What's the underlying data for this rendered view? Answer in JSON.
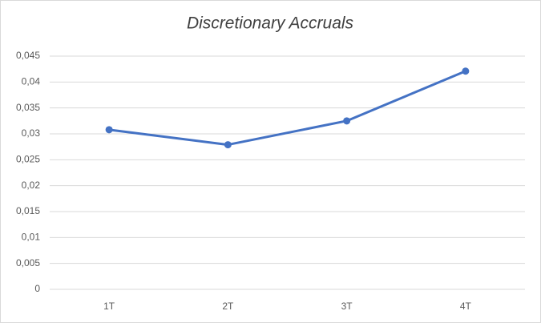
{
  "chart_data": {
    "type": "line",
    "title": "Discretionary Accruals",
    "categories": [
      "1T",
      "2T",
      "3T",
      "4T"
    ],
    "series": [
      {
        "name": "Discretionary Accruals",
        "color": "#4472c4",
        "values": [
          0.0308,
          0.0279,
          0.0325,
          0.0421
        ]
      }
    ],
    "ylim": [
      0,
      0.045
    ],
    "yticks": [
      0,
      {
        "value": 0.005,
        "label": "0,005"
      },
      {
        "value": 0.01,
        "label": "0,01"
      },
      {
        "value": 0.015,
        "label": "0,015"
      },
      {
        "value": 0.02,
        "label": "0,02"
      },
      {
        "value": 0.025,
        "label": "0,025"
      },
      {
        "value": 0.03,
        "label": "0,03"
      },
      {
        "value": 0.035,
        "label": "0,035"
      },
      {
        "value": 0.04,
        "label": "0,04"
      },
      {
        "value": 0.045,
        "label": "0,045"
      }
    ],
    "grid": true
  }
}
